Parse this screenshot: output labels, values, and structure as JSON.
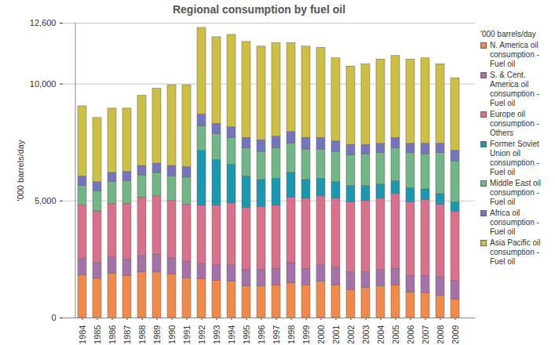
{
  "chart_data": {
    "type": "bar",
    "stacked": true,
    "title": "Regional consumption by fuel oil",
    "y_label": "'000 barrels/day",
    "legend_title": "'000 barrels/day",
    "legend": "right",
    "grid": true,
    "categories": [
      "1984",
      "1985",
      "1986",
      "1987",
      "1988",
      "1989",
      "1990",
      "1991",
      "1992",
      "1993",
      "1994",
      "1995",
      "1996",
      "1997",
      "1998",
      "1999",
      "2000",
      "2001",
      "2002",
      "2003",
      "2004",
      "2005",
      "2006",
      "2007",
      "2008",
      "2009"
    ],
    "ylim": [
      0,
      12600
    ],
    "yticks": [
      {
        "value": 0,
        "label": "0"
      },
      {
        "value": 5000,
        "label": "5,000"
      },
      {
        "value": 10000,
        "label": "10,000"
      },
      {
        "value": 12600,
        "label": "12,600"
      }
    ],
    "series": [
      {
        "name": "N. America oil consumption - Fuel oil",
        "color": "#f08a4b",
        "values": [
          1830,
          1680,
          1900,
          1800,
          1950,
          1950,
          1850,
          1700,
          1650,
          1600,
          1550,
          1350,
          1350,
          1400,
          1500,
          1400,
          1550,
          1400,
          1200,
          1300,
          1350,
          1400,
          1100,
          1050,
          950,
          800
        ]
      },
      {
        "name": "S. & Cent. America oil consumption - Fuel oil",
        "color": "#a472a8",
        "values": [
          700,
          670,
          700,
          700,
          700,
          750,
          700,
          700,
          650,
          650,
          700,
          700,
          700,
          700,
          850,
          700,
          700,
          750,
          750,
          650,
          700,
          700,
          700,
          750,
          800,
          800
        ]
      },
      {
        "name": "Europe oil consumption - Others",
        "color": "#d8728c",
        "values": [
          2270,
          2210,
          2270,
          2380,
          2500,
          2500,
          2450,
          2450,
          2500,
          2550,
          2650,
          2650,
          2700,
          2700,
          2800,
          3000,
          2950,
          2950,
          3000,
          3050,
          3050,
          3200,
          3150,
          3250,
          3100,
          2950
        ]
      },
      {
        "name": "Former Soviet Union oil consumption - Fuel oil",
        "color": "#1b97b0",
        "values": [
          null,
          null,
          null,
          null,
          null,
          null,
          null,
          null,
          2350,
          1950,
          1650,
          1350,
          1150,
          1150,
          1050,
          800,
          750,
          700,
          700,
          650,
          600,
          550,
          600,
          450,
          450,
          400
        ]
      },
      {
        "name": "Middle East oil consumption - Fuel oil",
        "color": "#72b587",
        "values": [
          850,
          860,
          950,
          970,
          950,
          1000,
          1050,
          1150,
          1050,
          1100,
          1150,
          1200,
          1200,
          1300,
          1250,
          1300,
          1250,
          1300,
          1300,
          1350,
          1350,
          1400,
          1500,
          1500,
          1750,
          1750
        ]
      },
      {
        "name": "Africa oil consumption - Fuel oil",
        "color": "#7575be",
        "values": [
          400,
          380,
          380,
          400,
          400,
          400,
          450,
          450,
          500,
          450,
          450,
          450,
          500,
          500,
          500,
          500,
          500,
          450,
          450,
          400,
          400,
          450,
          400,
          450,
          400,
          450
        ]
      },
      {
        "name": "Asia Pacific oil consumption - Fuel oil",
        "color": "#cdbf45",
        "values": [
          3000,
          2750,
          2750,
          2700,
          3000,
          3200,
          3450,
          3500,
          3700,
          3700,
          3950,
          4100,
          4000,
          4000,
          3800,
          3900,
          3850,
          3550,
          3350,
          3450,
          3600,
          3500,
          3600,
          3650,
          3400,
          3100
        ]
      }
    ]
  }
}
